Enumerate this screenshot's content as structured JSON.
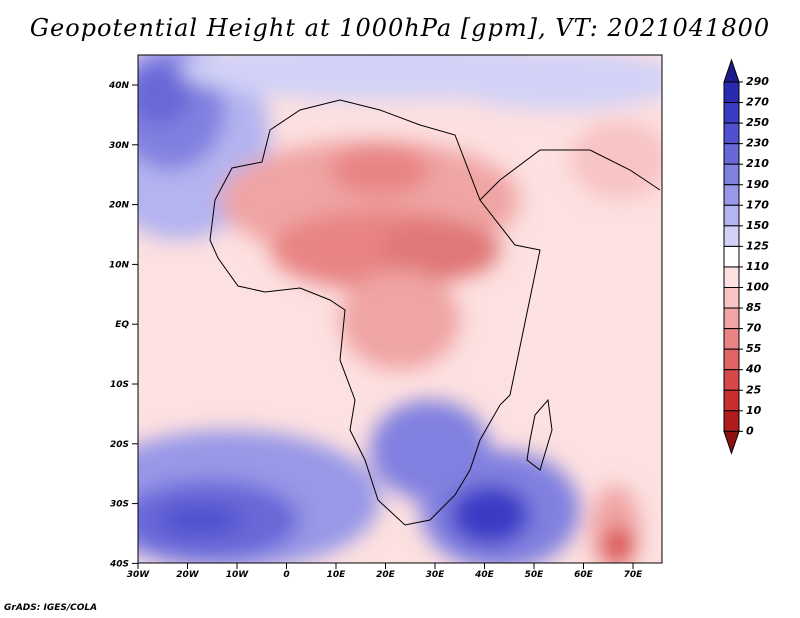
{
  "title": "Geopotential Height at 1000hPa [gpm], VT: 2021041800",
  "credit": "GrADS: IGES/COLA",
  "map": {
    "lat_labels": [
      "40N",
      "30N",
      "20N",
      "10N",
      "EQ",
      "10S",
      "20S",
      "30S",
      "40S"
    ],
    "lon_labels": [
      "30W",
      "20W",
      "10W",
      "0",
      "10E",
      "20E",
      "30E",
      "40E",
      "50E",
      "60E",
      "70E"
    ],
    "lon_range": [
      -30,
      76
    ],
    "lat_range": [
      -40,
      44
    ]
  },
  "colorbar": {
    "labels": [
      "290",
      "270",
      "250",
      "230",
      "210",
      "190",
      "170",
      "150",
      "125",
      "110",
      "100",
      "85",
      "70",
      "55",
      "40",
      "25",
      "10",
      "0"
    ],
    "colors": [
      "#1c1c8e",
      "#2a2ab0",
      "#3b3bc6",
      "#5050d0",
      "#6868d8",
      "#8080e0",
      "#9898e8",
      "#b4b4f0",
      "#d2d2f8",
      "#ffffff",
      "#fde0e0",
      "#f8c4c4",
      "#f0a4a4",
      "#e88484",
      "#e06464",
      "#d84848",
      "#c83030",
      "#b01c1c",
      "#8e1010"
    ]
  }
}
